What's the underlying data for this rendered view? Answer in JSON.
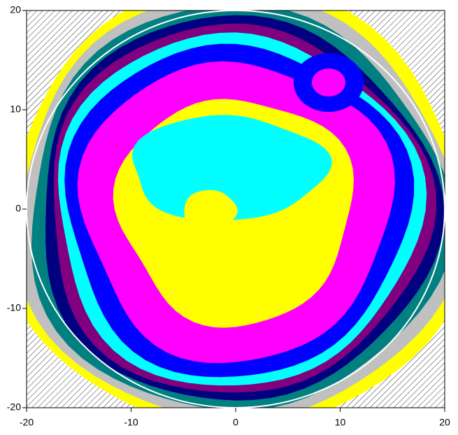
{
  "chart_data": {
    "type": "contour",
    "xlim": [
      -20,
      20
    ],
    "ylim": [
      -20,
      20
    ],
    "xticks": [
      -20,
      -10,
      0,
      10,
      20
    ],
    "yticks": [
      -20,
      -10,
      0,
      10,
      20
    ]
  }
}
